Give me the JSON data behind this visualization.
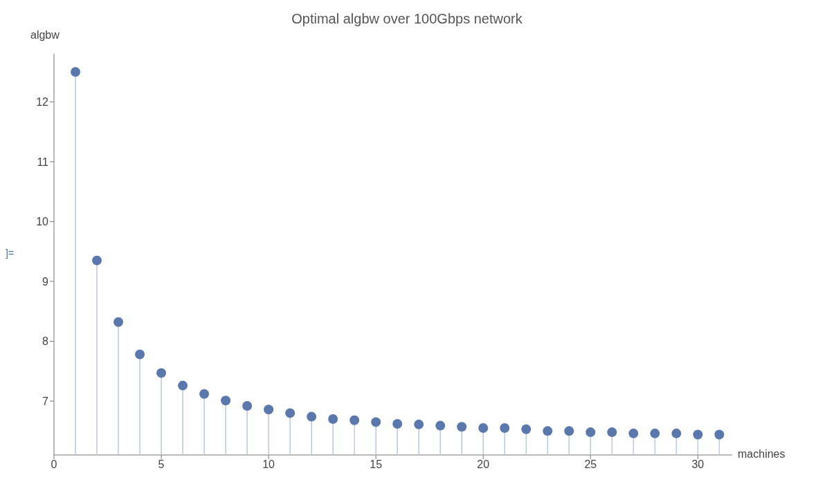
{
  "chart_data": {
    "type": "lollipop",
    "title": "Optimal algbw over 100Gbps network",
    "xlabel": "machines",
    "ylabel": "algbw",
    "annotations": [
      "]="
    ],
    "x": [
      1,
      2,
      3,
      4,
      5,
      6,
      7,
      8,
      9,
      10,
      11,
      12,
      13,
      14,
      15,
      16,
      17,
      18,
      19,
      20,
      21,
      22,
      23,
      24,
      25,
      26,
      27,
      28,
      29,
      30,
      31
    ],
    "series": [
      {
        "color": "#5b78ad",
        "values": [
          12.5,
          9.35,
          8.32,
          7.78,
          7.47,
          7.26,
          7.12,
          7.01,
          6.92,
          6.86,
          6.8,
          6.74,
          6.7,
          6.68,
          6.65,
          6.62,
          6.61,
          6.59,
          6.57,
          6.55,
          6.55,
          6.53,
          6.5,
          6.5,
          6.48,
          6.48,
          6.46,
          6.46,
          6.46,
          6.44,
          6.44
        ]
      }
    ],
    "xlim": [
      0,
      31.6
    ],
    "xticks": [
      0,
      5,
      10,
      15,
      20,
      25,
      30
    ],
    "ylim": [
      6.1,
      12.8
    ],
    "yticks": [
      7,
      8,
      9,
      10,
      11,
      12
    ],
    "marker": "circle"
  }
}
